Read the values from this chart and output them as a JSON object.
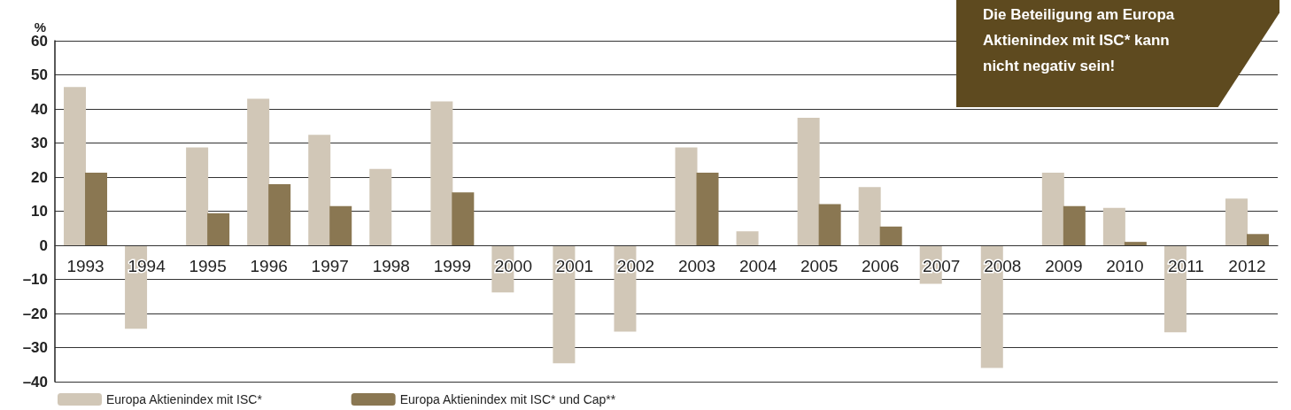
{
  "chart_data": {
    "type": "bar",
    "ylabel": "%",
    "categories": [
      "1993",
      "1994",
      "1995",
      "1996",
      "1997",
      "1998",
      "1999",
      "2000",
      "2001",
      "2002",
      "2003",
      "2004",
      "2005",
      "2006",
      "2007",
      "2008",
      "2009",
      "2010",
      "2011",
      "2012"
    ],
    "series": [
      {
        "name": "Europa Aktienindex mit ISC*",
        "color": "#d1c7b7",
        "values": [
          46.4,
          -24.5,
          28.7,
          43.0,
          32.4,
          22.4,
          42.2,
          -13.8,
          -34.6,
          -25.3,
          28.7,
          4.1,
          37.4,
          17.1,
          -11.3,
          -36.0,
          21.3,
          11.0,
          -25.5,
          13.7
        ]
      },
      {
        "name": "Europa Aktienindex mit ISC* und Cap**",
        "color": "#8a7752",
        "values": [
          21.3,
          0,
          9.4,
          17.9,
          11.5,
          0,
          15.5,
          0,
          0,
          0,
          21.3,
          0,
          12.1,
          5.5,
          0,
          0,
          11.5,
          1.0,
          0,
          3.3
        ]
      }
    ],
    "ylim": [
      -40,
      60
    ],
    "yticks": [
      {
        "value": -40,
        "label": "–40"
      },
      {
        "value": -30,
        "label": "–30"
      },
      {
        "value": -20,
        "label": "–20"
      },
      {
        "value": -10,
        "label": "–10"
      },
      0,
      10,
      20,
      30,
      40,
      50,
      60
    ],
    "grid": "y",
    "legend": "bottom left",
    "annotations": [
      "Die Beteiligung am Europa Aktienindex mit ISC* kann nicht negativ sein!"
    ]
  }
}
